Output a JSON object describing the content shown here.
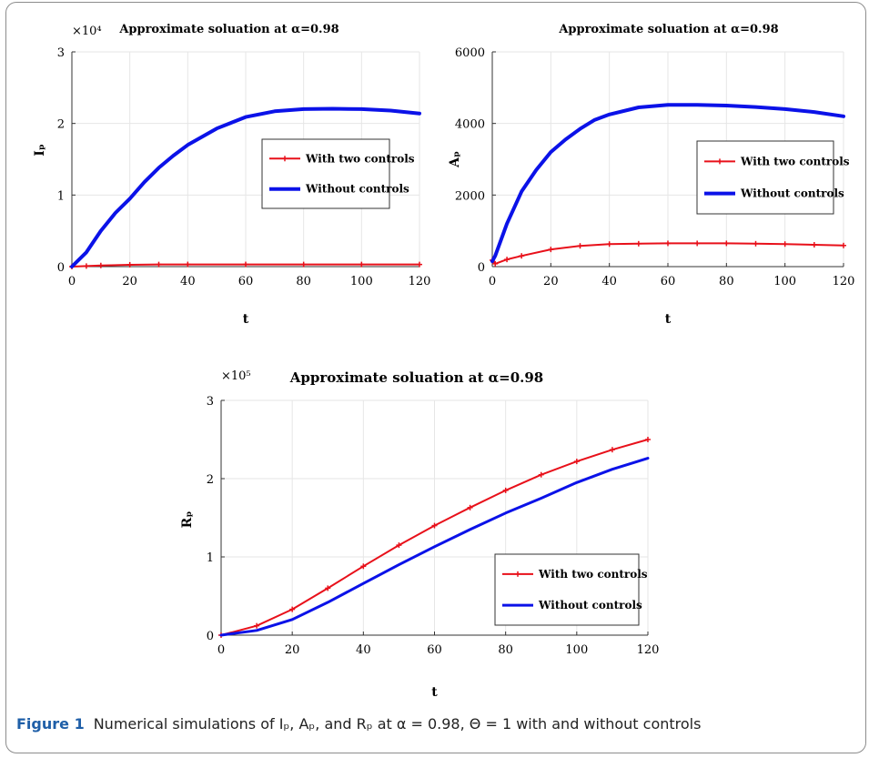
{
  "caption": {
    "label": "Figure 1",
    "text": "Numerical simulations of Iₚ, Aₚ, and Rₚ at α = 0.98, Θ = 1 with and without controls"
  },
  "colors": {
    "with_controls": "#e8101a",
    "without_controls": "#0b12e8"
  },
  "chart_data": [
    {
      "type": "line",
      "title": "Approximate soluation at α=0.98",
      "xlabel": "t",
      "ylabel": "Iₚ",
      "exponent_label": "×10⁴",
      "xlim": [
        0,
        120
      ],
      "ylim": [
        0,
        30000
      ],
      "xticks": [
        0,
        20,
        40,
        60,
        80,
        100,
        120
      ],
      "yticks": [
        0,
        10000,
        20000,
        30000
      ],
      "ytick_labels": [
        "0",
        "1",
        "2",
        "3"
      ],
      "grid": true,
      "legend_position": "center-right",
      "series": [
        {
          "name": "With two controls",
          "color": "#e8101a",
          "marker": "+",
          "width": 2,
          "x": [
            0,
            5,
            10,
            20,
            30,
            40,
            60,
            80,
            100,
            120
          ],
          "y": [
            0,
            80,
            160,
            260,
            300,
            310,
            310,
            300,
            300,
            300
          ]
        },
        {
          "name": "Without controls",
          "color": "#0b12e8",
          "width": 4,
          "x": [
            0,
            5,
            10,
            15,
            20,
            25,
            30,
            35,
            40,
            50,
            60,
            70,
            80,
            90,
            100,
            110,
            120
          ],
          "y": [
            0,
            2000,
            5000,
            7500,
            9500,
            11800,
            13800,
            15500,
            17000,
            19300,
            20900,
            21700,
            22000,
            22050,
            22000,
            21800,
            21400
          ]
        }
      ]
    },
    {
      "type": "line",
      "title": "Approximate soluation at α=0.98",
      "xlabel": "t",
      "ylabel": "Aₚ",
      "xlim": [
        0,
        120
      ],
      "ylim": [
        0,
        6000
      ],
      "xticks": [
        0,
        20,
        40,
        60,
        80,
        100,
        120
      ],
      "yticks": [
        0,
        2000,
        4000,
        6000
      ],
      "ytick_labels": [
        "0",
        "2000",
        "4000",
        "6000"
      ],
      "grid": true,
      "legend_position": "center-right",
      "series": [
        {
          "name": "With two controls",
          "color": "#e8101a",
          "marker": "+",
          "width": 2,
          "x": [
            0,
            1,
            5,
            10,
            20,
            30,
            40,
            50,
            60,
            70,
            80,
            90,
            100,
            110,
            120
          ],
          "y": [
            180,
            80,
            200,
            300,
            480,
            580,
            630,
            640,
            650,
            650,
            650,
            640,
            630,
            610,
            590
          ]
        },
        {
          "name": "Without controls",
          "color": "#0b12e8",
          "width": 4,
          "x": [
            0,
            1,
            5,
            10,
            15,
            20,
            25,
            30,
            35,
            40,
            50,
            60,
            70,
            80,
            90,
            100,
            110,
            120
          ],
          "y": [
            150,
            300,
            1200,
            2100,
            2700,
            3200,
            3550,
            3850,
            4100,
            4250,
            4450,
            4520,
            4520,
            4500,
            4460,
            4400,
            4320,
            4200
          ]
        }
      ]
    },
    {
      "type": "line",
      "title": "Approximate soluation at α=0.98",
      "xlabel": "t",
      "ylabel": "Rₚ",
      "exponent_label": "×10⁵",
      "xlim": [
        0,
        120
      ],
      "ylim": [
        0,
        300000
      ],
      "xticks": [
        0,
        20,
        40,
        60,
        80,
        100,
        120
      ],
      "yticks": [
        0,
        100000,
        200000,
        300000
      ],
      "ytick_labels": [
        "0",
        "1",
        "2",
        "3"
      ],
      "grid": true,
      "legend_position": "bottom-right",
      "series": [
        {
          "name": "With two controls",
          "color": "#e8101a",
          "marker": "+",
          "width": 2,
          "x": [
            0,
            10,
            20,
            30,
            40,
            50,
            60,
            70,
            80,
            90,
            100,
            110,
            120
          ],
          "y": [
            0,
            12000,
            33000,
            60000,
            88000,
            115000,
            140000,
            163000,
            185000,
            205000,
            222000,
            237000,
            250000
          ]
        },
        {
          "name": "Without controls",
          "color": "#0b12e8",
          "width": 3,
          "x": [
            0,
            10,
            20,
            30,
            40,
            50,
            60,
            70,
            80,
            90,
            100,
            110,
            120
          ],
          "y": [
            0,
            6000,
            20000,
            42000,
            66000,
            90000,
            113000,
            135000,
            156000,
            175000,
            195000,
            212000,
            226000
          ]
        }
      ]
    }
  ]
}
